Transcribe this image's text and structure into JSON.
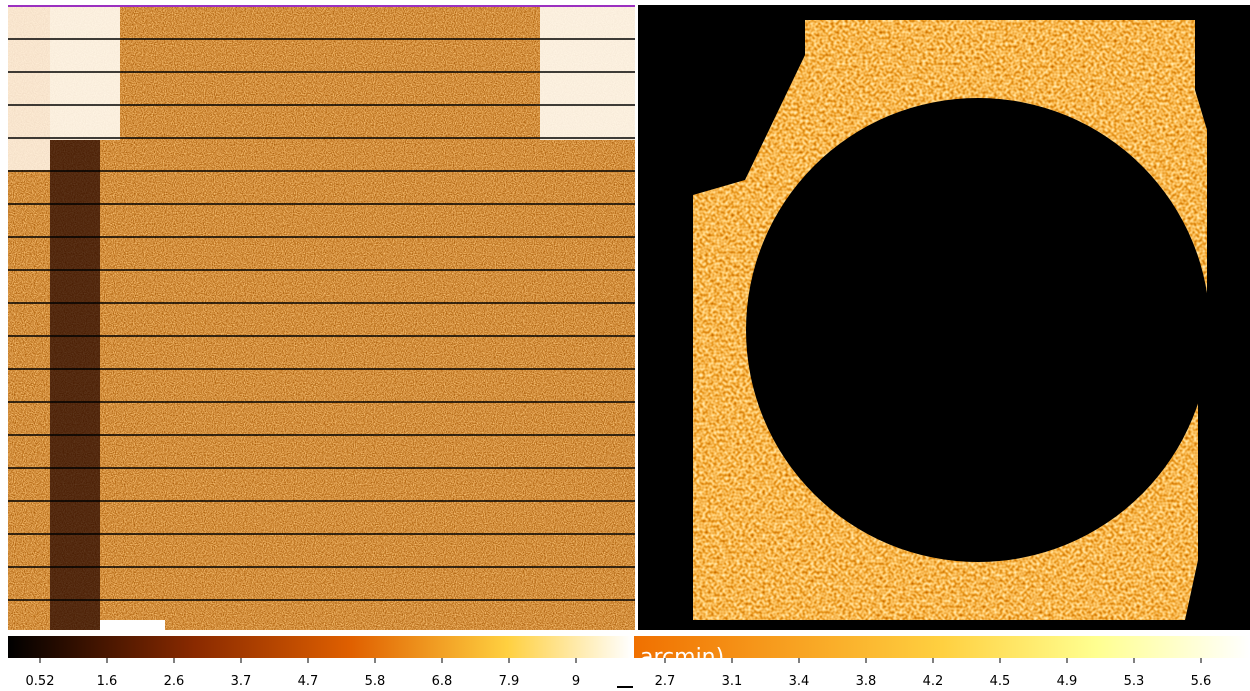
{
  "panels": [
    {
      "colorbar": {
        "labels": [
          "0.52",
          "1.6",
          "2.6",
          "3.7",
          "4.7",
          "5.8",
          "6.8",
          "7.9",
          "9"
        ]
      }
    },
    {
      "colorbar": {
        "labels": [
          "2.7",
          "3.1",
          "3.4",
          "3.8",
          "4.2",
          "4.5",
          "4.9",
          "5.3",
          "5.6"
        ]
      },
      "overlay_text": "arcmin)"
    }
  ]
}
